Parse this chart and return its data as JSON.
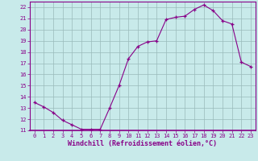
{
  "x": [
    0,
    1,
    2,
    3,
    4,
    5,
    6,
    7,
    8,
    9,
    10,
    11,
    12,
    13,
    14,
    15,
    16,
    17,
    18,
    19,
    20,
    21,
    22,
    23
  ],
  "y": [
    13.5,
    13.1,
    12.6,
    11.9,
    11.5,
    11.1,
    11.1,
    11.1,
    13.0,
    15.0,
    17.4,
    18.5,
    18.9,
    19.0,
    20.9,
    21.1,
    21.2,
    21.8,
    22.2,
    21.7,
    20.8,
    20.5,
    17.1,
    16.7
  ],
  "xlabel": "Windchill (Refroidissement éolien,°C)",
  "xlim": [
    -0.5,
    23.5
  ],
  "ylim": [
    11,
    22.5
  ],
  "yticks": [
    11,
    12,
    13,
    14,
    15,
    16,
    17,
    18,
    19,
    20,
    21,
    22
  ],
  "xticks": [
    0,
    1,
    2,
    3,
    4,
    5,
    6,
    7,
    8,
    9,
    10,
    11,
    12,
    13,
    14,
    15,
    16,
    17,
    18,
    19,
    20,
    21,
    22,
    23
  ],
  "line_color": "#880088",
  "marker": "+",
  "bg_color": "#c8eaea",
  "grid_color": "#9ababa",
  "spine_color": "#880088",
  "tick_label_fontsize": 5.0,
  "xlabel_fontsize": 6.0
}
